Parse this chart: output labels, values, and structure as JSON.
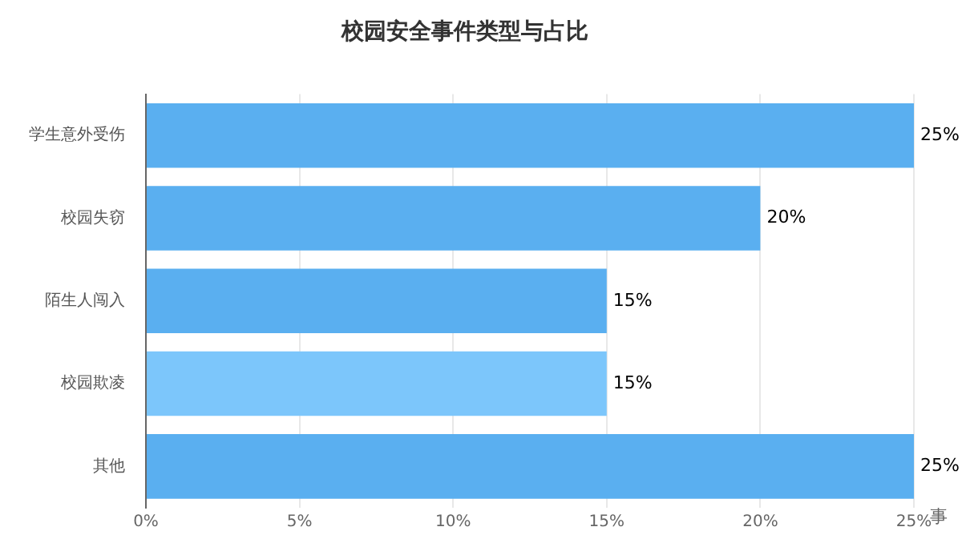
{
  "chart_data": {
    "type": "bar",
    "orientation": "horizontal",
    "title": "校园安全事件类型与占比",
    "xlabel": "事",
    "categories": [
      "学生意外受伤",
      "校园失窃",
      "陌生人闯入",
      "校园欺凌",
      "其他"
    ],
    "values": [
      25,
      20,
      15,
      15,
      25
    ],
    "colors": [
      "#5aaff0",
      "#5aaff0",
      "#5aaff0",
      "#7cc6fb",
      "#5aaff0"
    ],
    "value_labels": [
      "25%",
      "20%",
      "15%",
      "15%",
      "25%"
    ],
    "xlim": [
      0,
      25
    ],
    "xticks": [
      {
        "value": 0,
        "label": "0%"
      },
      {
        "value": 5,
        "label": "5%"
      },
      {
        "value": 10,
        "label": "10%"
      },
      {
        "value": 15,
        "label": "15%"
      },
      {
        "value": 20,
        "label": "20%"
      },
      {
        "value": 25,
        "label": "25%"
      }
    ],
    "grid": "x",
    "legend": false
  }
}
